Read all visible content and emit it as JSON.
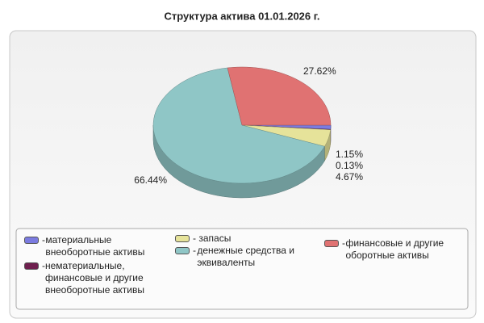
{
  "chart_data": {
    "type": "pie",
    "title": "Структура актива 01.01.2026 г.",
    "categories": [
      "материальные внеоборотные активы",
      "нематериальные, финансовые и другие внеоборотные активы",
      "запасы",
      "денежные средства и эквиваленты",
      "финансовые и другие оборотные активы"
    ],
    "values": [
      1.15,
      0.13,
      4.67,
      66.44,
      27.62
    ],
    "value_labels": [
      "1.15%",
      "0.13%",
      "4.67%",
      "66.44%",
      "27.62%"
    ],
    "colors": [
      "#7b7be0",
      "#6e1f4e",
      "#e6e39a",
      "#8fc6c6",
      "#e07272"
    ]
  }
}
